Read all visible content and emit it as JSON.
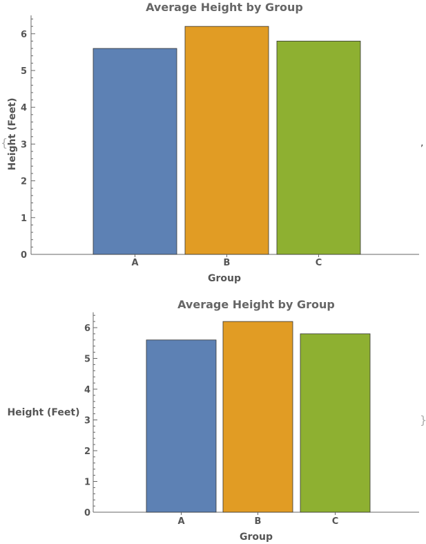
{
  "colors": {
    "A": "#5d81b4",
    "B": "#e19c24",
    "C": "#8eb031",
    "axis": "#666666",
    "bar_edge": "#333333"
  },
  "list_open_brace": "{",
  "list_separator": ",",
  "list_close_brace": "}",
  "chart_data": [
    {
      "type": "bar",
      "title": "Average Height by Group",
      "xlabel": "Group",
      "ylabel": "Height  (Feet)",
      "categories": [
        "A",
        "B",
        "C"
      ],
      "values": [
        5.6,
        6.2,
        5.8
      ],
      "yticks": [
        0,
        1,
        2,
        3,
        4,
        5,
        6
      ],
      "ylim": [
        0,
        6.5
      ],
      "ylabel_orientation": "rotated"
    },
    {
      "type": "bar",
      "title": "Average Height by Group",
      "xlabel": "Group",
      "ylabel": "Height  (Feet)",
      "categories": [
        "A",
        "B",
        "C"
      ],
      "values": [
        5.6,
        6.2,
        5.8
      ],
      "yticks": [
        0,
        1,
        2,
        3,
        4,
        5,
        6
      ],
      "ylim": [
        0,
        6.5
      ],
      "ylabel_orientation": "horizontal"
    }
  ]
}
